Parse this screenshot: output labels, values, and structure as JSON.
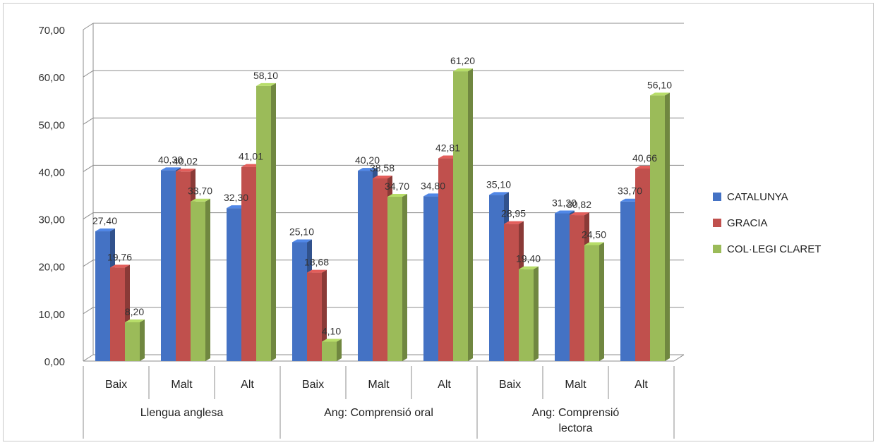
{
  "chart_data": {
    "type": "bar",
    "title": "",
    "xlabel": "",
    "ylabel": "",
    "ylim": [
      0,
      70
    ],
    "yticks": [
      "0,00",
      "10,00",
      "20,00",
      "30,00",
      "40,00",
      "50,00",
      "60,00",
      "70,00"
    ],
    "grid": true,
    "legend_position": "right",
    "groups": [
      {
        "label_lines": [
          "Llengua anglesa"
        ],
        "categories": [
          "Baix",
          "Malt",
          "Alt"
        ]
      },
      {
        "label_lines": [
          "Ang: Comprensió oral"
        ],
        "categories": [
          "Baix",
          "Malt",
          "Alt"
        ]
      },
      {
        "label_lines": [
          "Ang: Comprensió",
          "lectora"
        ],
        "categories": [
          "Baix",
          "Malt",
          "Alt"
        ]
      }
    ],
    "series": [
      {
        "name": "CATALUNYA",
        "color": "#4472C4",
        "values": [
          27.4,
          40.3,
          32.3,
          25.1,
          40.2,
          34.8,
          35.1,
          31.2,
          33.7
        ],
        "labels": [
          "27,40",
          "40,30",
          "32,30",
          "25,10",
          "40,20",
          "34,80",
          "35,10",
          "31,20",
          "33,70"
        ]
      },
      {
        "name": "GRACIA",
        "color": "#C0504D",
        "values": [
          19.76,
          40.02,
          41.01,
          18.68,
          38.58,
          42.81,
          28.95,
          30.82,
          40.66
        ],
        "labels": [
          "19,76",
          "40,02",
          "41,01",
          "18,68",
          "38,58",
          "42,81",
          "28,95",
          "30,82",
          "40,66"
        ]
      },
      {
        "name": "COL·LEGI CLARET",
        "color": "#9BBB59",
        "values": [
          8.2,
          33.7,
          58.1,
          4.1,
          34.7,
          61.2,
          19.4,
          24.5,
          56.1
        ],
        "labels": [
          "8,20",
          "33,70",
          "58,10",
          "4,10",
          "34,70",
          "61,20",
          "19,40",
          "24,50",
          "56,10"
        ]
      }
    ]
  }
}
